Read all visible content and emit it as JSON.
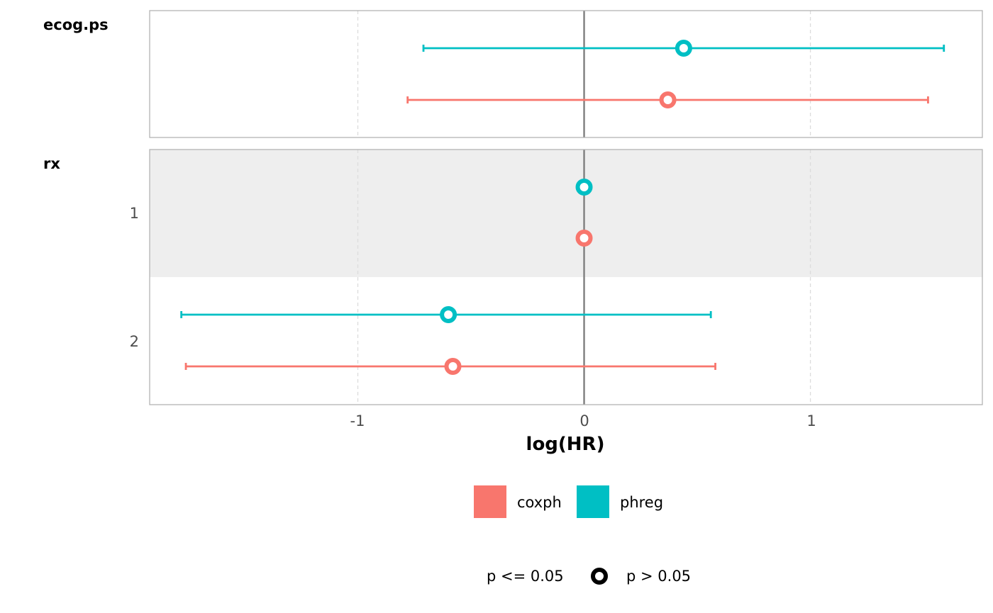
{
  "colors": {
    "coxph": "#F8766D",
    "phreg": "#00BFC4",
    "zero_line": "#7f7f7f",
    "stripe": "#EEEEEE",
    "panel_border": "#B3B3B3"
  },
  "chart_data": {
    "type": "forest",
    "xlabel": "log(HR)",
    "xlim": [
      -1.92,
      1.76
    ],
    "x_ticks": [
      -1,
      0,
      1
    ],
    "x_tick_labels": [
      "-1",
      "0",
      "1"
    ],
    "grid": "vertical dashed",
    "legend_position": "bottom",
    "series": [
      {
        "name": "coxph",
        "color": "#F8766D"
      },
      {
        "name": "phreg",
        "color": "#00BFC4"
      }
    ],
    "shape_legend": {
      "left_label": "p <= 0.05",
      "right_label": "p > 0.05"
    },
    "facets": [
      {
        "label": "ecog.ps",
        "rows": [
          {
            "level": "",
            "points": [
              {
                "series": "phreg",
                "estimate": 0.44,
                "low": -0.71,
                "high": 1.59
              },
              {
                "series": "coxph",
                "estimate": 0.37,
                "low": -0.78,
                "high": 1.52
              }
            ]
          }
        ]
      },
      {
        "label": "rx",
        "rows": [
          {
            "level": "1",
            "shaded": true,
            "points": [
              {
                "series": "phreg",
                "estimate": 0.0,
                "low": null,
                "high": null
              },
              {
                "series": "coxph",
                "estimate": 0.0,
                "low": null,
                "high": null
              }
            ]
          },
          {
            "level": "2",
            "shaded": false,
            "points": [
              {
                "series": "phreg",
                "estimate": -0.6,
                "low": -1.78,
                "high": 0.56
              },
              {
                "series": "coxph",
                "estimate": -0.58,
                "low": -1.76,
                "high": 0.58
              }
            ]
          }
        ]
      }
    ]
  }
}
